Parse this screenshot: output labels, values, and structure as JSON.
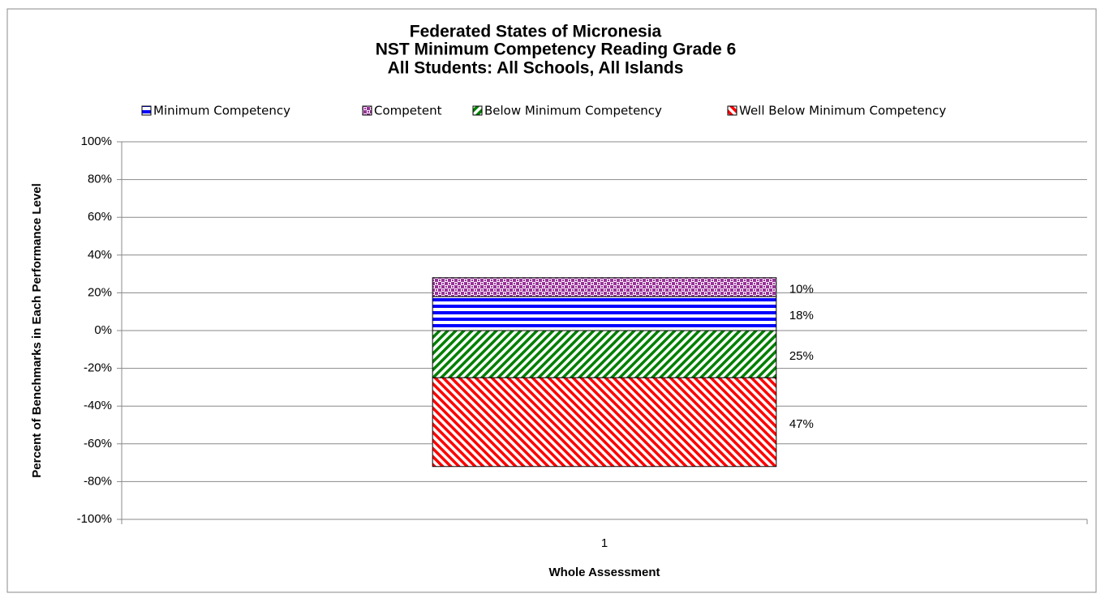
{
  "chart_data": {
    "type": "bar",
    "stacked": true,
    "title": [
      "Federated States of Micronesia",
      "NST Minimum Competency Reading Grade 6",
      "All Students: All Schools, All Islands"
    ],
    "xlabel": "Whole Assessment",
    "ylabel": "Percent of Benchmarks in Each Performance Level",
    "categories": [
      "1"
    ],
    "series": [
      {
        "name": "Minimum Competency",
        "color": "#0000ff",
        "pattern": "horizontal",
        "values": [
          18
        ],
        "value_labels": [
          "18%"
        ]
      },
      {
        "name": "Competent",
        "color": "#993399",
        "pattern": "checker",
        "values": [
          10
        ],
        "value_labels": [
          "10%"
        ]
      },
      {
        "name": "Below Minimum Competency",
        "color": "#008000",
        "pattern": "diagonal-up",
        "values": [
          -25
        ],
        "value_labels": [
          "25%"
        ]
      },
      {
        "name": "Well Below Minimum Competency",
        "color": "#ff0000",
        "pattern": "diagonal-down",
        "values": [
          -47
        ],
        "value_labels": [
          "47%"
        ]
      }
    ],
    "ylim": [
      -100,
      100
    ],
    "yticks": [
      {
        "value": -100,
        "label": "-100%"
      },
      {
        "value": -80,
        "label": "-80%"
      },
      {
        "value": -60,
        "label": "-60%"
      },
      {
        "value": -40,
        "label": "-40%"
      },
      {
        "value": -20,
        "label": "-20%"
      },
      {
        "value": 0,
        "label": "0%"
      },
      {
        "value": 20,
        "label": "20%"
      },
      {
        "value": 40,
        "label": "40%"
      },
      {
        "value": 60,
        "label": "60%"
      },
      {
        "value": 80,
        "label": "80%"
      },
      {
        "value": 100,
        "label": "100%"
      }
    ],
    "grid": true,
    "legend": "top"
  }
}
